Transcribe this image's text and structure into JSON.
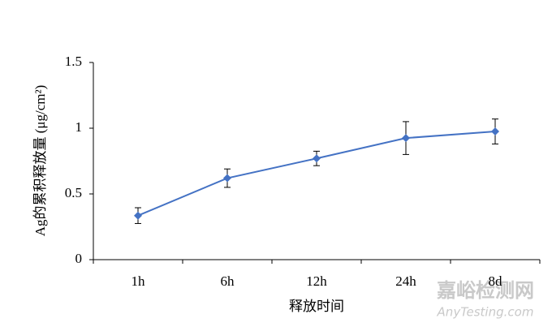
{
  "chart_data": {
    "type": "line",
    "categories": [
      "1h",
      "6h",
      "12h",
      "24h",
      "8d"
    ],
    "series": [
      {
        "name": "Ag",
        "color": "#4472c4",
        "values": [
          0.335,
          0.62,
          0.77,
          0.925,
          0.975
        ],
        "errors": [
          0.06,
          0.07,
          0.055,
          0.125,
          0.095
        ]
      }
    ],
    "y_label": "Ag的累积释放量 (μg/cm²)",
    "x_label": "释放时间",
    "ylim": [
      0,
      1.5
    ],
    "yticks": [
      0,
      0.5,
      1,
      1.5
    ],
    "grid": false
  },
  "watermark": {
    "title": "嘉峪检测网",
    "url": "AnyTesting.com"
  }
}
